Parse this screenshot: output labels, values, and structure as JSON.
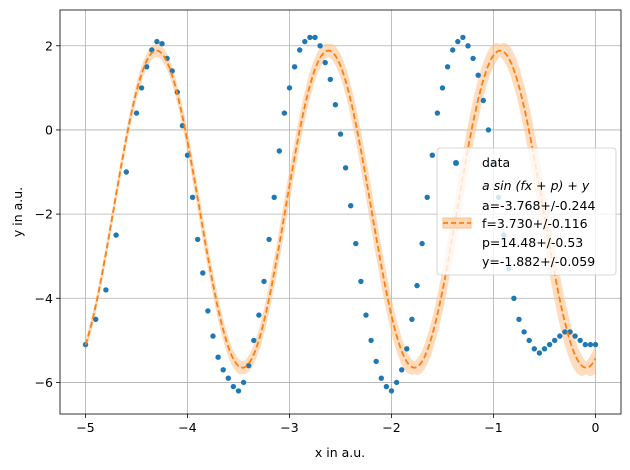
{
  "chart_data": {
    "type": "scatter",
    "xlabel": "x in a.u.",
    "ylabel": "y in a.u.",
    "xlim": [
      -5.25,
      0.25
    ],
    "ylim": [
      -6.75,
      2.85
    ],
    "x_ticks": [
      -5,
      -4,
      -3,
      -2,
      -1,
      0
    ],
    "y_ticks": [
      -6,
      -4,
      -2,
      0,
      2
    ],
    "x_tick_labels": [
      "−5",
      "−4",
      "−3",
      "−2",
      "−1",
      "0"
    ],
    "y_tick_labels": [
      "−6",
      "−4",
      "−2",
      "0",
      "2"
    ],
    "grid": true,
    "legend_position": "center-right",
    "series": [
      {
        "name": "data",
        "kind": "scatter",
        "color": "#1f77b4",
        "x": [
          -5.0,
          -4.9,
          -4.8,
          -4.7,
          -4.6,
          -4.5,
          -4.45,
          -4.4,
          -4.35,
          -4.3,
          -4.25,
          -4.2,
          -4.15,
          -4.1,
          -4.05,
          -4.0,
          -3.95,
          -3.9,
          -3.85,
          -3.8,
          -3.75,
          -3.7,
          -3.65,
          -3.6,
          -3.55,
          -3.5,
          -3.45,
          -3.4,
          -3.35,
          -3.3,
          -3.25,
          -3.2,
          -3.15,
          -3.1,
          -3.05,
          -3.0,
          -2.95,
          -2.9,
          -2.85,
          -2.8,
          -2.75,
          -2.7,
          -2.65,
          -2.6,
          -2.55,
          -2.5,
          -2.45,
          -2.4,
          -2.35,
          -2.3,
          -2.25,
          -2.2,
          -2.15,
          -2.1,
          -2.05,
          -2.0,
          -1.95,
          -1.9,
          -1.85,
          -1.8,
          -1.75,
          -1.7,
          -1.65,
          -1.6,
          -1.55,
          -1.5,
          -1.45,
          -1.4,
          -1.35,
          -1.3,
          -1.25,
          -1.2,
          -1.15,
          -1.1,
          -1.05,
          -1.0,
          -0.95,
          -0.9,
          -0.85,
          -0.8,
          -0.75,
          -0.7,
          -0.65,
          -0.6,
          -0.55,
          -0.5,
          -0.45,
          -0.4,
          -0.35,
          -0.3,
          -0.25,
          -0.2,
          -0.15,
          -0.1,
          -0.05,
          0.0
        ],
        "y": [
          -5.1,
          -4.5,
          -3.8,
          -2.5,
          -1.0,
          0.4,
          1.0,
          1.5,
          1.9,
          2.1,
          2.05,
          1.7,
          1.4,
          0.9,
          0.1,
          -0.6,
          -1.6,
          -2.6,
          -3.4,
          -4.3,
          -4.9,
          -5.4,
          -5.7,
          -5.9,
          -6.1,
          -6.2,
          -6.0,
          -5.6,
          -5.0,
          -4.4,
          -3.6,
          -2.6,
          -1.6,
          -0.5,
          0.4,
          1.0,
          1.5,
          1.9,
          2.1,
          2.2,
          2.2,
          2.0,
          1.6,
          1.2,
          0.6,
          -0.1,
          -0.9,
          -1.8,
          -2.7,
          -3.6,
          -4.4,
          -5.0,
          -5.5,
          -5.9,
          -6.1,
          -6.2,
          -6.0,
          -5.7,
          -5.2,
          -4.5,
          -3.7,
          -2.7,
          -1.6,
          -0.6,
          0.4,
          1.0,
          1.5,
          1.9,
          2.1,
          2.2,
          2.0,
          1.7,
          1.3,
          0.7,
          0.0,
          -0.8,
          -1.6,
          -2.5,
          -3.3,
          -4.0,
          -4.5,
          -4.8,
          -5.0,
          -5.2,
          -5.3,
          -5.2,
          -5.1,
          -5.0,
          -4.9,
          -4.8,
          -4.8,
          -4.9,
          -5.0,
          -5.1,
          -5.1,
          -5.1
        ]
      },
      {
        "name": "$a\\sin(fx+p)+y$",
        "kind": "fit-line",
        "color": "#ff7f0e",
        "style": "dashed"
      }
    ],
    "fit_params": {
      "a": -3.768,
      "f": 3.73,
      "p": 14.48,
      "y": -1.882
    }
  },
  "legend": {
    "data_label": "data",
    "fit_label": "a sin (fx + p) + y",
    "param_a": "a=-3.768+/-0.244",
    "param_f": "f=3.730+/-0.116",
    "param_p": "p=14.48+/-0.53",
    "param_y": "y=-1.882+/-0.059"
  },
  "colors": {
    "data": "#1f77b4",
    "fit": "#ff7f0e",
    "band": "#ffbf86",
    "grid": "#b0b0b0"
  }
}
